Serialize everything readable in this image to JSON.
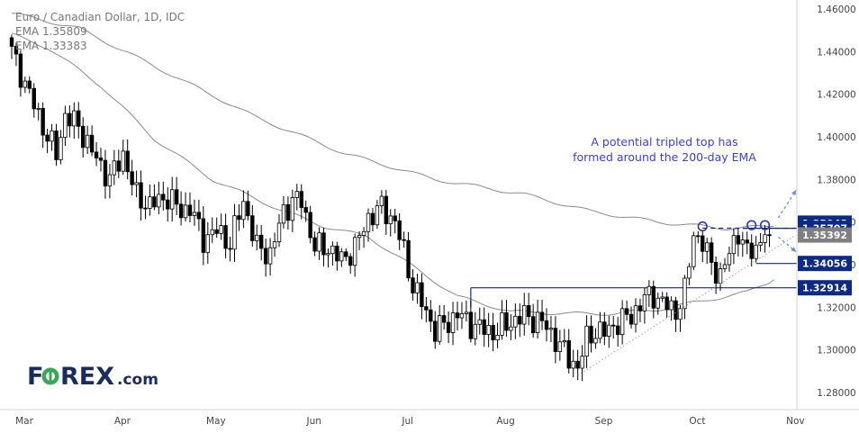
{
  "header": {
    "symbol_line": "Euro / Canadian Dollar, 1D, IDC",
    "ema1_label": "EMA  1.35809",
    "ema2_label": "EMA  1.33383"
  },
  "brand": {
    "logo_text": "FOREX.com"
  },
  "annotation": {
    "line1": "A potential tripled top has",
    "line2": "formed around the 200-day EMA"
  },
  "colors": {
    "up_candle": "#ffffff",
    "down_candle": "#000000",
    "ema_lines": "#8a8a8a",
    "level_lines": "#0d2a85",
    "annotation": "#3b3fd1",
    "projection_arrows": "#6c8bd8",
    "current_price_box": "#7f7f7f",
    "logo_dark": "#1a2b5e",
    "logo_green": "#3aa856"
  },
  "chart_data": {
    "type": "candlestick",
    "instrument": "Euro / Canadian Dollar",
    "timeframe": "1D",
    "source": "IDC",
    "ylim": [
      1.27,
      1.46
    ],
    "ytick_values": [
      1.28,
      1.3,
      1.32,
      1.34,
      1.36,
      1.38,
      1.4,
      1.42,
      1.44,
      1.46
    ],
    "y_tick_labels": [
      "1.28000",
      "1.30000",
      "1.32000",
      "1.34000",
      "1.36000",
      "1.38000",
      "1.40000",
      "1.42000",
      "1.44000",
      "1.46000"
    ],
    "x_tick_labels": [
      "Mar",
      "Apr",
      "May",
      "Jun",
      "Jul",
      "Aug",
      "Sep",
      "Oct",
      "Nov"
    ],
    "x_tick_bars": [
      0,
      22,
      43,
      65,
      86,
      108,
      130,
      151,
      173
    ],
    "total_bars": 178,
    "candle_anchors": [
      [
        0,
        1.44
      ],
      [
        2,
        1.43
      ],
      [
        5,
        1.415
      ],
      [
        8,
        1.4
      ],
      [
        10,
        1.392
      ],
      [
        12,
        1.41
      ],
      [
        15,
        1.405
      ],
      [
        18,
        1.393
      ],
      [
        22,
        1.38
      ],
      [
        25,
        1.392
      ],
      [
        28,
        1.372
      ],
      [
        31,
        1.368
      ],
      [
        35,
        1.372
      ],
      [
        38,
        1.365
      ],
      [
        40,
        1.367
      ],
      [
        43,
        1.352
      ],
      [
        46,
        1.356
      ],
      [
        49,
        1.35
      ],
      [
        52,
        1.37
      ],
      [
        55,
        1.348
      ],
      [
        58,
        1.345
      ],
      [
        61,
        1.365
      ],
      [
        63,
        1.37
      ],
      [
        65,
        1.37
      ],
      [
        68,
        1.348
      ],
      [
        71,
        1.348
      ],
      [
        74,
        1.342
      ],
      [
        77,
        1.348
      ],
      [
        80,
        1.362
      ],
      [
        83,
        1.367
      ],
      [
        86,
        1.36
      ],
      [
        88,
        1.346
      ],
      [
        90,
        1.33
      ],
      [
        93,
        1.318
      ],
      [
        95,
        1.309
      ],
      [
        98,
        1.313
      ],
      [
        100,
        1.317
      ],
      [
        103,
        1.312
      ],
      [
        108,
        1.308
      ],
      [
        112,
        1.313
      ],
      [
        115,
        1.316
      ],
      [
        119,
        1.313
      ],
      [
        122,
        1.305
      ],
      [
        125,
        1.296
      ],
      [
        127,
        1.292
      ],
      [
        129,
        1.305
      ],
      [
        131,
        1.309
      ],
      [
        133,
        1.308
      ],
      [
        136,
        1.313
      ],
      [
        139,
        1.316
      ],
      [
        142,
        1.324
      ],
      [
        144,
        1.326
      ],
      [
        146,
        1.322
      ],
      [
        149,
        1.318
      ],
      [
        151,
        1.327
      ],
      [
        153,
        1.355
      ],
      [
        155,
        1.35
      ],
      [
        157,
        1.34
      ],
      [
        159,
        1.335
      ],
      [
        161,
        1.345
      ],
      [
        163,
        1.356
      ],
      [
        165,
        1.345
      ],
      [
        167,
        1.348
      ],
      [
        169,
        1.356
      ],
      [
        170,
        1.354
      ]
    ],
    "series": [
      {
        "name": "EMA",
        "points": [
          [
            0,
            1.458
          ],
          [
            15,
            1.451
          ],
          [
            35,
            1.43
          ],
          [
            55,
            1.409
          ],
          [
            75,
            1.392
          ],
          [
            95,
            1.38
          ],
          [
            115,
            1.373
          ],
          [
            130,
            1.365
          ],
          [
            145,
            1.36
          ],
          [
            160,
            1.357
          ],
          [
            171,
            1.358
          ]
        ]
      },
      {
        "name": "EMA",
        "points": [
          [
            0,
            1.448
          ],
          [
            8,
            1.442
          ],
          [
            20,
            1.424
          ],
          [
            32,
            1.399
          ],
          [
            45,
            1.38
          ],
          [
            60,
            1.366
          ],
          [
            70,
            1.358
          ],
          [
            80,
            1.353
          ],
          [
            88,
            1.342
          ],
          [
            100,
            1.325
          ],
          [
            112,
            1.318
          ],
          [
            125,
            1.317
          ],
          [
            135,
            1.317
          ],
          [
            145,
            1.319
          ],
          [
            155,
            1.323
          ],
          [
            165,
            1.327
          ],
          [
            171,
            1.333
          ]
        ]
      }
    ],
    "price_labels": [
      {
        "value": 1.35948,
        "text": "1.35948"
      },
      {
        "value": 1.35707,
        "text": "1.35707"
      },
      {
        "value": 1.35392,
        "text": "1.35392"
      },
      {
        "value": 1.34056,
        "text": "1.34056"
      },
      {
        "value": 1.32914,
        "text": "1.32914"
      }
    ],
    "levels": [
      {
        "name": "resistance-1.35707",
        "value": 1.35707,
        "from_bar": 164
      },
      {
        "name": "support-1.34056",
        "value": 1.34056,
        "from_bar": 167
      },
      {
        "name": "support-1.32914",
        "value": 1.32914,
        "from_bar": 103
      }
    ],
    "top_markers": [
      {
        "bar": 155,
        "value": 1.3571
      },
      {
        "bar": 166,
        "value": 1.3577
      },
      {
        "bar": 169,
        "value": 1.3577
      }
    ],
    "trendline": {
      "from": [
        127,
        1.288
      ],
      "to": [
        176,
        1.354
      ]
    },
    "arrows": [
      {
        "from": [
          172,
          1.362
        ],
        "to": [
          176,
          1.375
        ]
      },
      {
        "from": [
          172,
          1.353
        ],
        "to": [
          176,
          1.346
        ]
      }
    ]
  }
}
